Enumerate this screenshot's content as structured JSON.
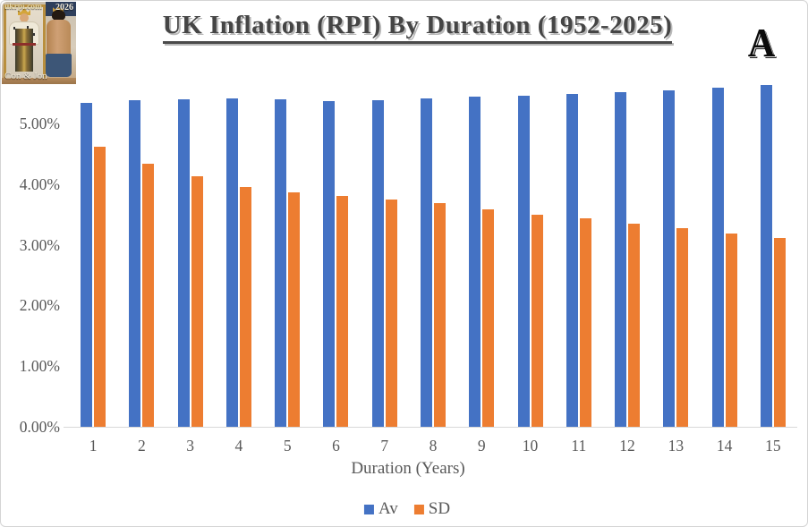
{
  "page": {
    "background": "#ffffff",
    "border_color": "#d4d4d4"
  },
  "header": {
    "title": "UK Inflation (RPI) By Duration (1952-2025)",
    "logo_letter": "A"
  },
  "photo_badge": {
    "site": "ukrpi.com",
    "year": "2026",
    "caption": "Con & Jon"
  },
  "chart_data": {
    "type": "bar",
    "title": "UK Inflation (RPI) By Duration (1952-2025)",
    "xlabel": "Duration (Years)",
    "ylabel": "",
    "units": "%",
    "categories": [
      1,
      2,
      3,
      4,
      5,
      6,
      7,
      8,
      9,
      10,
      11,
      12,
      13,
      14,
      15
    ],
    "series": [
      {
        "name": "Av",
        "color": "#4472C4",
        "values": [
          5.34,
          5.38,
          5.4,
          5.41,
          5.4,
          5.37,
          5.38,
          5.41,
          5.44,
          5.46,
          5.49,
          5.51,
          5.55,
          5.59,
          5.63
        ]
      },
      {
        "name": "SD",
        "color": "#ED7D31",
        "values": [
          4.61,
          4.33,
          4.13,
          3.96,
          3.86,
          3.8,
          3.74,
          3.68,
          3.58,
          3.5,
          3.43,
          3.35,
          3.27,
          3.19,
          3.11
        ]
      }
    ],
    "y_tick_values": [
      0,
      1,
      2,
      3,
      4,
      5
    ],
    "y_tick_labels": [
      "0.00%",
      "1.00%",
      "2.00%",
      "3.00%",
      "4.00%",
      "5.00%"
    ],
    "ylim": [
      0,
      5.75
    ],
    "grid": false,
    "legend_position": "bottom",
    "axis_text_color": "#595959",
    "axis_line_color": "#D9D9D9"
  }
}
